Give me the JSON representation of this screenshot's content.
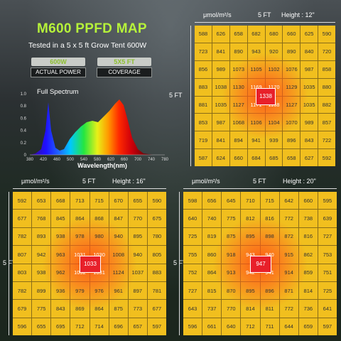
{
  "title": "M600 PPFD MAP",
  "subtitle": "Tested in a 5 x 5 ft Grow Tent 600W",
  "badges": [
    {
      "value": "600W",
      "label": "ACTUAL POWER"
    },
    {
      "value": "5X5 FT",
      "label": "COVERAGE"
    }
  ],
  "spectrum": {
    "title": "Full Spectrum",
    "xlabel": "Wavelength(nm)",
    "xticks": [
      "380",
      "420",
      "460",
      "500",
      "540",
      "580",
      "620",
      "660",
      "700",
      "740",
      "780"
    ],
    "yticks": [
      "1.0",
      "0.8",
      "0.6",
      "0.4",
      "0.2",
      "0"
    ]
  },
  "unit": "μmol/m²/s",
  "size_label": "5 FT",
  "maps": [
    {
      "height": "Height : 12\"",
      "center": "1338",
      "rows": [
        [
          "588",
          "626",
          "658",
          "682",
          "680",
          "660",
          "625",
          "590"
        ],
        [
          "723",
          "841",
          "890",
          "943",
          "920",
          "890",
          "840",
          "720"
        ],
        [
          "856",
          "989",
          "1073",
          "1105",
          "1102",
          "1076",
          "987",
          "858"
        ],
        [
          "883",
          "1038",
          "1130",
          "1169",
          "1170",
          "1129",
          "1035",
          "880"
        ],
        [
          "881",
          "1035",
          "1127",
          "1171",
          "1168",
          "1127",
          "1035",
          "882"
        ],
        [
          "853",
          "987",
          "1068",
          "1106",
          "1104",
          "1070",
          "989",
          "857"
        ],
        [
          "719",
          "841",
          "894",
          "941",
          "939",
          "896",
          "843",
          "722"
        ],
        [
          "587",
          "624",
          "660",
          "684",
          "685",
          "658",
          "627",
          "592"
        ]
      ]
    },
    {
      "height": "Height : 16\"",
      "center": "1033",
      "rows": [
        [
          "592",
          "653",
          "668",
          "713",
          "715",
          "670",
          "655",
          "590"
        ],
        [
          "677",
          "768",
          "845",
          "864",
          "868",
          "847",
          "770",
          "675"
        ],
        [
          "782",
          "893",
          "938",
          "978",
          "980",
          "940",
          "895",
          "780"
        ],
        [
          "807",
          "942",
          "963",
          "1031",
          "1030",
          "1008",
          "940",
          "805"
        ],
        [
          "803",
          "938",
          "962",
          "1032",
          "1031",
          "1124",
          "1037",
          "883"
        ],
        [
          "782",
          "899",
          "936",
          "979",
          "976",
          "961",
          "897",
          "781"
        ],
        [
          "679",
          "775",
          "843",
          "869",
          "864",
          "875",
          "773",
          "677"
        ],
        [
          "596",
          "655",
          "695",
          "712",
          "714",
          "696",
          "657",
          "597"
        ]
      ]
    },
    {
      "height": "Height : 20\"",
      "center": "947",
      "rows": [
        [
          "598",
          "656",
          "645",
          "710",
          "715",
          "642",
          "660",
          "595"
        ],
        [
          "640",
          "740",
          "775",
          "812",
          "816",
          "772",
          "738",
          "639"
        ],
        [
          "725",
          "819",
          "875",
          "895",
          "898",
          "872",
          "816",
          "727"
        ],
        [
          "755",
          "860",
          "918",
          "943",
          "940",
          "915",
          "862",
          "753"
        ],
        [
          "752",
          "864",
          "913",
          "942",
          "941",
          "914",
          "859",
          "751"
        ],
        [
          "727",
          "815",
          "870",
          "895",
          "896",
          "871",
          "814",
          "725"
        ],
        [
          "643",
          "737",
          "770",
          "814",
          "811",
          "772",
          "736",
          "641"
        ],
        [
          "596",
          "661",
          "640",
          "712",
          "711",
          "644",
          "659",
          "597"
        ]
      ]
    }
  ],
  "colors": {
    "title": "#b6f23a",
    "cell": "#f1bf1e",
    "center": "#e8202a",
    "hot": "#ff5a1e"
  }
}
